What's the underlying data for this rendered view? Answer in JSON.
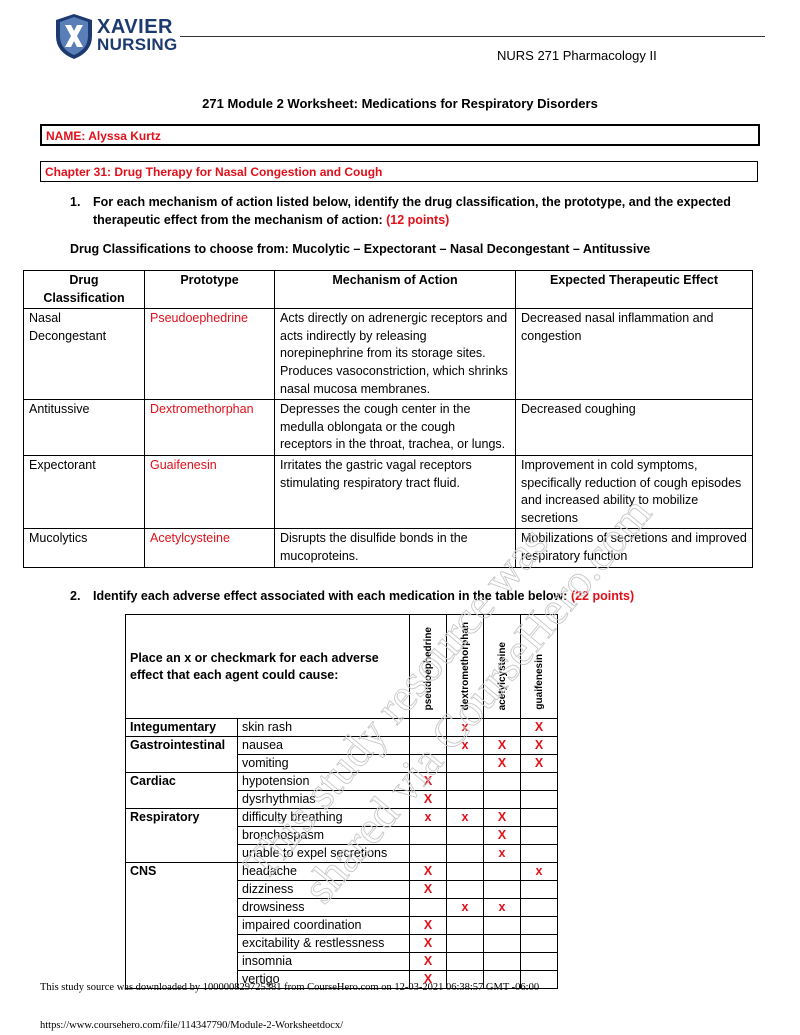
{
  "header": {
    "logo_line1": "XAVIER",
    "logo_line2": "NURSING",
    "course": "NURS 271 Pharmacology II"
  },
  "title": "271 Module 2 Worksheet: Medications for Respiratory Disorders",
  "name_box": "NAME: Alyssa Kurtz",
  "chapter_box": "Chapter 31: Drug Therapy for Nasal Congestion and Cough",
  "question1": {
    "number": "1.",
    "text": "For each mechanism of action listed below, identify the drug classification, the prototype, and the expected therapeutic effect from the mechanism of action:",
    "points": "(12 points)"
  },
  "classifications_line": "Drug Classifications to choose from: Mucolytic – Expectorant – Nasal Decongestant – Antitussive",
  "table1": {
    "headers": [
      "Drug Classification",
      "Prototype",
      "Mechanism of Action",
      "Expected Therapeutic Effect"
    ],
    "rows": [
      {
        "classification": "Nasal Decongestant",
        "prototype": "Pseudoephedrine",
        "mechanism": "Acts directly on adrenergic receptors and acts indirectly by releasing norepinephrine from its storage sites. Produces vasoconstriction, which shrinks nasal mucosa membranes.",
        "effect": "Decreased nasal inflammation and congestion"
      },
      {
        "classification": "Antitussive",
        "prototype": "Dextromethorphan",
        "mechanism": "Depresses the cough center in the medulla oblongata or the cough receptors in the throat, trachea, or lungs.",
        "effect": "Decreased coughing"
      },
      {
        "classification": "Expectorant",
        "prototype": "Guaifenesin",
        "mechanism": "Irritates the gastric vagal receptors stimulating respiratory tract fluid.",
        "effect": "Improvement in cold symptoms, specifically reduction of cough episodes and increased ability to mobilize secretions"
      },
      {
        "classification": "Mucolytics",
        "prototype": "Acetylcysteine",
        "mechanism": "Disrupts the disulfide bonds in the mucoproteins.",
        "effect": "Mobilizations of secretions and improved respiratory function"
      }
    ]
  },
  "question2": {
    "number": "2.",
    "text": "Identify each adverse effect associated with each medication in the table below:",
    "points": "(22 points)"
  },
  "table2": {
    "instruction": "Place an x or checkmark for each adverse effect that each agent could cause:",
    "drugs": [
      "pseudoephedrine",
      "dextromethorphan",
      "acetylcysteine",
      "guaifenesin"
    ],
    "rows": [
      {
        "category": "Integumentary",
        "effect": "skin rash",
        "marks": [
          "",
          "x",
          "",
          "X"
        ]
      },
      {
        "category": "Gastrointestinal",
        "effect": "nausea",
        "marks": [
          "",
          "x",
          "X",
          "X"
        ]
      },
      {
        "category": "",
        "effect": "vomiting",
        "marks": [
          "",
          "",
          "X",
          "X"
        ]
      },
      {
        "category": "Cardiac",
        "effect": "hypotension",
        "marks": [
          "X",
          "",
          "",
          ""
        ]
      },
      {
        "category": "",
        "effect": "dysrhythmias",
        "marks": [
          "X",
          "",
          "",
          ""
        ]
      },
      {
        "category": "Respiratory",
        "effect": "difficulty breathing",
        "marks": [
          "x",
          "x",
          "X",
          ""
        ]
      },
      {
        "category": "",
        "effect": "bronchospasm",
        "marks": [
          "",
          "",
          "X",
          ""
        ]
      },
      {
        "category": "",
        "effect": "unable to expel secretions",
        "marks": [
          "",
          "",
          "x",
          ""
        ]
      },
      {
        "category": "CNS",
        "effect": "headache",
        "marks": [
          "X",
          "",
          "",
          "x"
        ]
      },
      {
        "category": "",
        "effect": "dizziness",
        "marks": [
          "X",
          "",
          "",
          ""
        ]
      },
      {
        "category": "",
        "effect": "drowsiness",
        "marks": [
          "",
          "x",
          "x",
          ""
        ]
      },
      {
        "category": "",
        "effect": "impaired coordination",
        "marks": [
          "X",
          "",
          "",
          ""
        ]
      },
      {
        "category": "",
        "effect": "excitability & restlessness",
        "marks": [
          "X",
          "",
          "",
          ""
        ]
      },
      {
        "category": "",
        "effect": "insomnia",
        "marks": [
          "X",
          "",
          "",
          ""
        ]
      },
      {
        "category": "",
        "effect": "vertigo",
        "marks": [
          "X",
          "",
          "",
          ""
        ]
      }
    ]
  },
  "footer": {
    "download_notice": "This study source was downloaded by 100000829725381 from CourseHero.com on 12-03-2021 06:38:57 GMT -06:00",
    "url": "https://www.coursehero.com/file/114347790/Module-2-Worksheetdocx/"
  },
  "watermark": {
    "line1": "This study resource was",
    "line2": "shared via CourseHero.com"
  },
  "colors": {
    "accent_red": "#e0101a",
    "logo_blue": "#1c3a70"
  }
}
